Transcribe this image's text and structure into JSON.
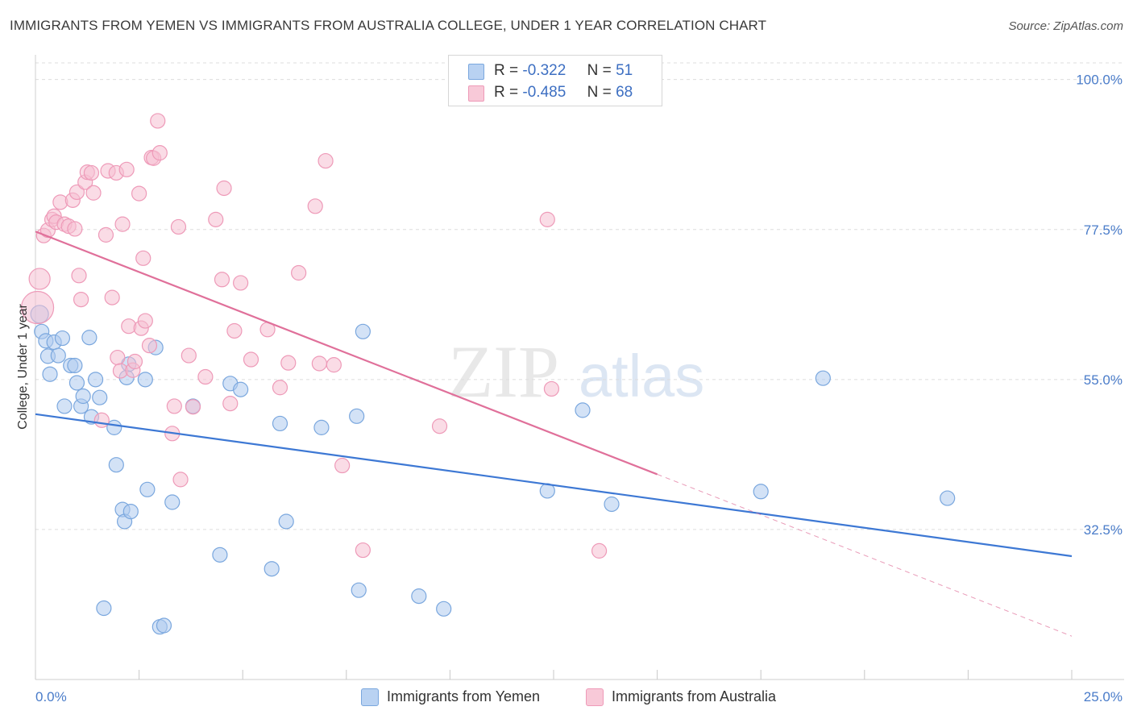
{
  "title": "IMMIGRANTS FROM YEMEN VS IMMIGRANTS FROM AUSTRALIA COLLEGE, UNDER 1 YEAR CORRELATION CHART",
  "source": "Source: ZipAtlas.com",
  "watermark": {
    "zip": "ZIP",
    "atlas": "atlas"
  },
  "legend": {
    "r_label": "R =",
    "n_label": "N =",
    "rows": [
      {
        "r": "-0.322",
        "n": "51",
        "color": "#4a86d6"
      },
      {
        "r": "-0.485",
        "n": "68",
        "color": "#e87fa3"
      }
    ]
  },
  "colors": {
    "yemen_fill": "#aecbef",
    "yemen_stroke": "#7aa7de",
    "yemen_line": "#3d78d4",
    "australia_fill": "#f6bfd1",
    "australia_stroke": "#ee9ab8",
    "australia_line": "#e0709a",
    "tick": "#4a7cc9",
    "grid": "#dddddd"
  },
  "chart_data": {
    "type": "scatter",
    "title": "IMMIGRANTS FROM YEMEN VS IMMIGRANTS FROM AUSTRALIA COLLEGE, UNDER 1 YEAR CORRELATION CHART",
    "xlabel": "",
    "ylabel": "College, Under 1 year",
    "xlim": [
      0,
      25
    ],
    "ylim": [
      10,
      102.5
    ],
    "x_tick_labels": [
      {
        "value": 0,
        "label": "0.0%"
      },
      {
        "value": 25,
        "label": "25.0%"
      }
    ],
    "y_ticks": [
      {
        "value": 100,
        "label": "100.0%"
      },
      {
        "value": 77.5,
        "label": "77.5%"
      },
      {
        "value": 55,
        "label": "55.0%"
      },
      {
        "value": 32.5,
        "label": "32.5%"
      }
    ],
    "grid": true,
    "legend_position": "top-center",
    "series": [
      {
        "name": "Immigrants from Yemen",
        "color": "#4a86d6",
        "trend": {
          "x": [
            0,
            25
          ],
          "y": [
            49.8,
            28.5
          ],
          "dashed_from": null
        },
        "points": [
          [
            0.1,
            64.8
          ],
          [
            0.15,
            62.2
          ],
          [
            0.25,
            60.8
          ],
          [
            0.3,
            58.5
          ],
          [
            0.35,
            55.8
          ],
          [
            0.45,
            60.6
          ],
          [
            0.55,
            58.6
          ],
          [
            0.65,
            61.2
          ],
          [
            0.7,
            51.0
          ],
          [
            0.85,
            57.1
          ],
          [
            0.95,
            57.1
          ],
          [
            1.0,
            54.5
          ],
          [
            1.1,
            51.0
          ],
          [
            1.15,
            52.5
          ],
          [
            1.3,
            61.3
          ],
          [
            1.35,
            49.4
          ],
          [
            1.45,
            55.0
          ],
          [
            1.55,
            52.3
          ],
          [
            1.9,
            47.8
          ],
          [
            1.95,
            42.2
          ],
          [
            2.1,
            35.5
          ],
          [
            2.15,
            33.7
          ],
          [
            2.2,
            55.3
          ],
          [
            2.25,
            57.3
          ],
          [
            2.3,
            35.2
          ],
          [
            2.65,
            55.0
          ],
          [
            2.7,
            38.5
          ],
          [
            2.9,
            59.8
          ],
          [
            3.0,
            17.9
          ],
          [
            3.1,
            18.1
          ],
          [
            3.3,
            36.6
          ],
          [
            3.8,
            51.0
          ],
          [
            4.45,
            28.7
          ],
          [
            4.7,
            54.4
          ],
          [
            4.95,
            53.5
          ],
          [
            5.7,
            26.6
          ],
          [
            5.9,
            48.4
          ],
          [
            6.05,
            33.7
          ],
          [
            6.9,
            47.8
          ],
          [
            7.75,
            49.5
          ],
          [
            7.8,
            23.4
          ],
          [
            7.9,
            62.2
          ],
          [
            9.25,
            22.5
          ],
          [
            9.85,
            20.6
          ],
          [
            12.35,
            38.3
          ],
          [
            13.2,
            50.4
          ],
          [
            13.9,
            36.3
          ],
          [
            17.5,
            38.2
          ],
          [
            19.0,
            55.2
          ],
          [
            22.0,
            37.2
          ],
          [
            1.65,
            20.7
          ]
        ]
      },
      {
        "name": "Immigrants from Australia",
        "color": "#e87fa3",
        "trend": {
          "x": [
            0,
            25
          ],
          "y": [
            77.2,
            16.5
          ],
          "dashed_from": 15
        },
        "points": [
          [
            0.05,
            65.8
          ],
          [
            0.1,
            70.1
          ],
          [
            0.2,
            76.6
          ],
          [
            0.3,
            77.4
          ],
          [
            0.4,
            79.0
          ],
          [
            0.45,
            79.5
          ],
          [
            0.5,
            78.6
          ],
          [
            0.6,
            81.6
          ],
          [
            0.7,
            78.3
          ],
          [
            0.8,
            78.0
          ],
          [
            0.9,
            81.9
          ],
          [
            0.95,
            77.6
          ],
          [
            1.0,
            83.1
          ],
          [
            1.05,
            70.6
          ],
          [
            1.1,
            67.0
          ],
          [
            1.2,
            84.6
          ],
          [
            1.25,
            86.1
          ],
          [
            1.35,
            86.0
          ],
          [
            1.4,
            83.0
          ],
          [
            1.6,
            48.9
          ],
          [
            1.7,
            76.7
          ],
          [
            1.75,
            86.3
          ],
          [
            1.85,
            67.3
          ],
          [
            1.95,
            86.0
          ],
          [
            1.98,
            58.3
          ],
          [
            2.05,
            56.3
          ],
          [
            2.1,
            78.3
          ],
          [
            2.2,
            86.5
          ],
          [
            2.25,
            63.0
          ],
          [
            2.35,
            56.4
          ],
          [
            2.4,
            57.7
          ],
          [
            2.5,
            82.9
          ],
          [
            2.55,
            62.7
          ],
          [
            2.6,
            73.2
          ],
          [
            2.65,
            63.8
          ],
          [
            2.75,
            60.1
          ],
          [
            2.8,
            88.3
          ],
          [
            2.85,
            88.2
          ],
          [
            2.95,
            93.8
          ],
          [
            3.0,
            89.0
          ],
          [
            3.3,
            46.9
          ],
          [
            3.35,
            51.0
          ],
          [
            3.45,
            77.9
          ],
          [
            3.5,
            40.0
          ],
          [
            3.7,
            58.6
          ],
          [
            3.8,
            50.9
          ],
          [
            4.1,
            55.4
          ],
          [
            4.35,
            79.0
          ],
          [
            4.55,
            83.7
          ],
          [
            4.5,
            70.0
          ],
          [
            4.7,
            51.4
          ],
          [
            4.8,
            62.3
          ],
          [
            4.95,
            69.5
          ],
          [
            5.2,
            58.0
          ],
          [
            5.6,
            62.5
          ],
          [
            5.9,
            53.8
          ],
          [
            6.1,
            57.5
          ],
          [
            6.35,
            71.0
          ],
          [
            6.75,
            81.0
          ],
          [
            6.85,
            57.4
          ],
          [
            7.0,
            87.8
          ],
          [
            7.2,
            57.2
          ],
          [
            7.4,
            42.1
          ],
          [
            7.9,
            29.4
          ],
          [
            9.75,
            48.0
          ],
          [
            12.35,
            79.0
          ],
          [
            12.45,
            53.6
          ],
          [
            13.6,
            29.3
          ]
        ]
      }
    ]
  },
  "bottom_legend": [
    {
      "label": "Immigrants from Yemen"
    },
    {
      "label": "Immigrants from Australia"
    }
  ]
}
